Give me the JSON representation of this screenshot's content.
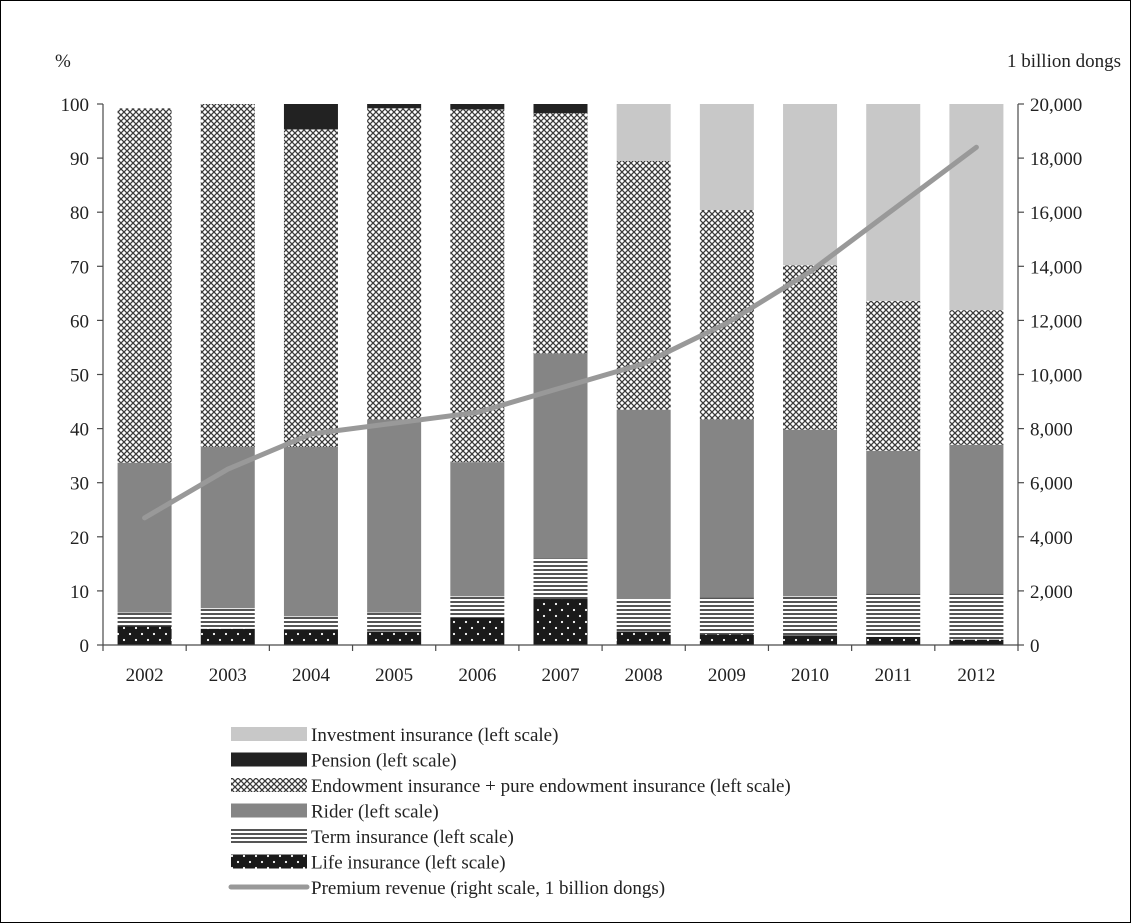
{
  "chart_data": {
    "type": "bar",
    "stacked": true,
    "title": "",
    "left_axis_unit": "%",
    "right_axis_unit": "1 billion dongs",
    "categories": [
      "2002",
      "2003",
      "2004",
      "2005",
      "2006",
      "2007",
      "2008",
      "2009",
      "2010",
      "2011",
      "2012"
    ],
    "ylim_left": [
      0,
      100
    ],
    "yticks_left": [
      "0",
      "10",
      "20",
      "30",
      "40",
      "50",
      "60",
      "70",
      "80",
      "90",
      "100"
    ],
    "ylim_right": [
      0,
      20000
    ],
    "yticks_right": [
      "0",
      "2,000",
      "4,000",
      "6,000",
      "8,000",
      "10,000",
      "12,000",
      "14,000",
      "16,000",
      "18,000",
      "20,000"
    ],
    "grid": false,
    "legend_placement": "bottom",
    "series": [
      {
        "name": "Life insurance (left scale)",
        "key": "life",
        "axis": "left",
        "pattern": "dots",
        "color": "#1a1a1a",
        "values": [
          3.5,
          3.0,
          2.8,
          2.5,
          5.0,
          8.5,
          2.5,
          2.0,
          1.8,
          1.5,
          1.0
        ]
      },
      {
        "name": "Term insurance (left scale)",
        "key": "term",
        "axis": "left",
        "pattern": "hlines",
        "color": "#6f6f6f",
        "values": [
          2.5,
          3.8,
          2.5,
          3.5,
          4.0,
          7.5,
          6.0,
          6.8,
          7.2,
          8.0,
          8.5
        ]
      },
      {
        "name": "Rider (left scale)",
        "key": "rider",
        "axis": "left",
        "pattern": "solid",
        "color": "#858585",
        "values": [
          27.7,
          29.8,
          31.3,
          35.7,
          24.8,
          37.9,
          35.0,
          32.9,
          30.8,
          26.4,
          27.5
        ]
      },
      {
        "name": "Endowment insurance + pure endowment insurance (left scale)",
        "key": "endow",
        "axis": "left",
        "pattern": "crosshatch",
        "color": "#555555",
        "values": [
          65.5,
          63.4,
          58.7,
          57.5,
          65.2,
          44.4,
          46.0,
          38.7,
          30.4,
          27.7,
          24.9
        ]
      },
      {
        "name": "Pension (left scale)",
        "key": "pension",
        "axis": "left",
        "pattern": "solid",
        "color": "#222222",
        "values": [
          0,
          0,
          4.7,
          0.8,
          1.0,
          1.7,
          0,
          0,
          0,
          0,
          0
        ]
      },
      {
        "name": "Investment insurance (left scale)",
        "key": "invest",
        "axis": "left",
        "pattern": "solid",
        "color": "#c8c8c8",
        "values": [
          0,
          0,
          0,
          0,
          0,
          0,
          10.5,
          19.6,
          29.8,
          36.4,
          38.1
        ]
      },
      {
        "name": "Premium revenue (right scale, 1 billion dongs)",
        "key": "premium",
        "axis": "right",
        "kind": "line",
        "color": "#999999",
        "values": [
          4700,
          6500,
          7800,
          8200,
          8600,
          9500,
          10400,
          11900,
          13800,
          16100,
          18400
        ]
      }
    ],
    "legend_order": [
      "invest",
      "pension",
      "endow",
      "rider",
      "term",
      "life",
      "premium"
    ]
  }
}
